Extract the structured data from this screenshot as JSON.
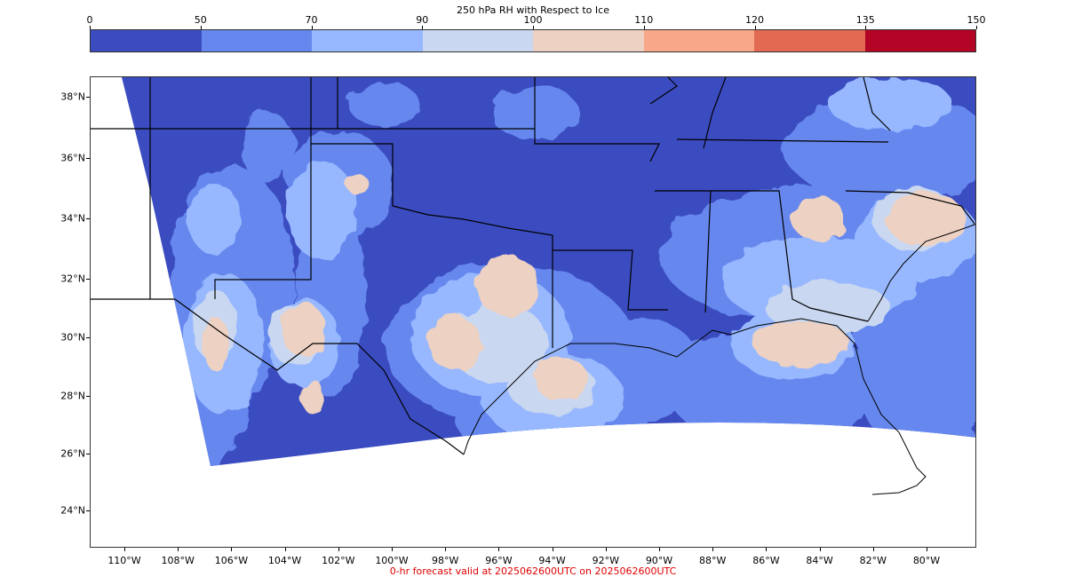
{
  "colorbar": {
    "title": "250 hPa RH with Respect to Ice",
    "ticks": [
      "0",
      "50",
      "70",
      "90",
      "100",
      "110",
      "120",
      "135",
      "150"
    ],
    "colors": [
      "#3b4cc0",
      "#6688ee",
      "#97b8ff",
      "#c9d7f0",
      "#edd1c2",
      "#f7a889",
      "#e26952",
      "#b40426"
    ]
  },
  "map": {
    "lat_labels": [
      "38°N",
      "36°N",
      "34°N",
      "32°N",
      "30°N",
      "28°N",
      "26°N",
      "24°N"
    ],
    "lon_labels": [
      "110°W",
      "108°W",
      "106°W",
      "104°W",
      "102°W",
      "100°W",
      "98°W",
      "96°W",
      "94°W",
      "92°W",
      "90°W",
      "88°W",
      "86°W",
      "84°W",
      "82°W",
      "80°W"
    ]
  },
  "footer": "0-hr forecast valid at 2025062600UTC on 2025062600UTC"
}
